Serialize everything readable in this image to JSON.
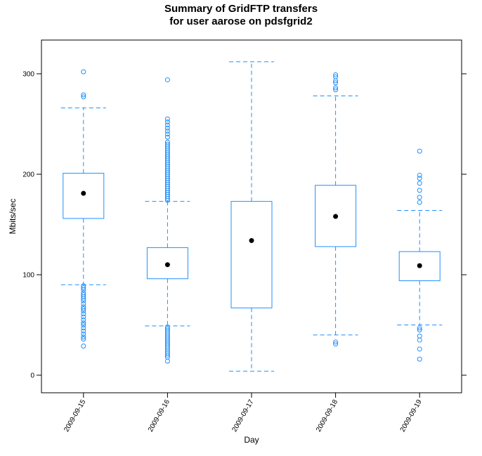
{
  "chart_data": {
    "type": "box",
    "title": "Summary of GridFTP transfers",
    "subtitle": "for user aarose on pdsfgrid2",
    "xlabel": "Day",
    "ylabel": "Mbits/sec",
    "ylim": [
      -18,
      333
    ],
    "yticks": [
      0,
      100,
      200,
      300
    ],
    "grid": false,
    "colors": {
      "box": "#1E90FF",
      "median": "#000000",
      "frame": "#000000"
    },
    "categories": [
      "2009-09-15",
      "2009-09-16",
      "2009-09-17",
      "2009-09-18",
      "2009-09-19"
    ],
    "boxes": [
      {
        "category": "2009-09-15",
        "whisker_low": 90,
        "q1": 156,
        "median": 181,
        "q3": 201,
        "whisker_high": 266,
        "outliers": [
          302,
          279,
          277,
          89,
          87,
          85,
          82,
          80,
          78,
          76,
          74,
          71,
          68,
          66,
          64,
          61,
          58,
          55,
          52,
          50,
          47,
          44,
          41,
          38,
          36,
          29
        ]
      },
      {
        "category": "2009-09-16",
        "whisker_low": 49,
        "q1": 96,
        "median": 110,
        "q3": 127,
        "whisker_high": 173,
        "outliers": [
          294,
          255,
          252,
          249,
          246,
          243,
          240,
          237,
          232,
          230,
          228,
          226,
          224,
          222,
          220,
          218,
          216,
          214,
          212,
          210,
          208,
          206,
          204,
          202,
          200,
          198,
          196,
          194,
          192,
          190,
          188,
          186,
          184,
          182,
          180,
          178,
          176,
          174,
          48,
          46,
          44,
          42,
          40,
          38,
          36,
          34,
          32,
          30,
          28,
          26,
          24,
          22,
          20,
          18,
          14
        ]
      },
      {
        "category": "2009-09-17",
        "whisker_low": 4,
        "q1": 67,
        "median": 134,
        "q3": 173,
        "whisker_high": 312,
        "outliers": []
      },
      {
        "category": "2009-09-18",
        "whisker_low": 40,
        "q1": 128,
        "median": 158,
        "q3": 189,
        "whisker_high": 278,
        "outliers": [
          299,
          297,
          293,
          291,
          286,
          284,
          33,
          31
        ]
      },
      {
        "category": "2009-09-19",
        "whisker_low": 50,
        "q1": 94,
        "median": 109,
        "q3": 123,
        "whisker_high": 164,
        "outliers": [
          223,
          199,
          196,
          191,
          184,
          177,
          172,
          47,
          45,
          39,
          35,
          26,
          16
        ]
      }
    ]
  }
}
